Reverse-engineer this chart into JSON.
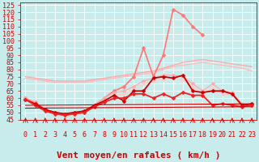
{
  "xlabel": "Vent moyen/en rafales ( km/h )",
  "background_color": "#c8ecec",
  "grid_color": "#b0d0d0",
  "xlim": [
    -0.5,
    23.5
  ],
  "ylim": [
    45,
    127
  ],
  "yticks": [
    45,
    50,
    55,
    60,
    65,
    70,
    75,
    80,
    85,
    90,
    95,
    100,
    105,
    110,
    115,
    120,
    125
  ],
  "xticks": [
    0,
    1,
    2,
    3,
    4,
    5,
    6,
    7,
    8,
    9,
    10,
    11,
    12,
    13,
    14,
    15,
    16,
    17,
    18,
    19,
    20,
    21,
    22,
    23
  ],
  "series": [
    {
      "name": "smooth_top_max",
      "color": "#ffaaaa",
      "alpha": 1.0,
      "linewidth": 1.0,
      "marker": null,
      "x": [
        0,
        1,
        2,
        3,
        4,
        5,
        6,
        7,
        8,
        9,
        10,
        11,
        12,
        13,
        14,
        15,
        16,
        17,
        18,
        19,
        20,
        21,
        22,
        23
      ],
      "y": [
        75,
        74,
        73,
        72,
        72,
        72,
        72,
        73,
        74,
        75,
        76,
        77,
        78,
        79,
        81,
        83,
        85,
        86,
        87,
        86,
        85,
        84,
        83,
        82
      ]
    },
    {
      "name": "smooth_top_mid",
      "color": "#ffbbbb",
      "alpha": 1.0,
      "linewidth": 1.0,
      "marker": null,
      "x": [
        0,
        1,
        2,
        3,
        4,
        5,
        6,
        7,
        8,
        9,
        10,
        11,
        12,
        13,
        14,
        15,
        16,
        17,
        18,
        19,
        20,
        21,
        22,
        23
      ],
      "y": [
        74,
        73,
        72,
        71,
        71,
        71,
        71,
        72,
        73,
        74,
        75,
        76,
        77,
        78,
        80,
        82,
        83,
        84,
        85,
        84,
        83,
        82,
        81,
        79
      ]
    },
    {
      "name": "rafales_cur",
      "color": "#ff7777",
      "alpha": 1.0,
      "linewidth": 1.2,
      "marker": "D",
      "markersize": 2.5,
      "x": [
        0,
        1,
        2,
        3,
        4,
        5,
        6,
        7,
        8,
        9,
        10,
        11,
        12,
        13,
        14,
        15,
        16,
        17,
        18
      ],
      "y": [
        60,
        57,
        52,
        50,
        49,
        50,
        51,
        55,
        60,
        65,
        68,
        75,
        95,
        75,
        90,
        122,
        118,
        110,
        104
      ]
    },
    {
      "name": "vent_rafales_hist",
      "color": "#ffaaaa",
      "alpha": 0.9,
      "linewidth": 1.0,
      "marker": "D",
      "markersize": 2.5,
      "x": [
        0,
        1,
        2,
        3,
        4,
        5,
        6,
        7,
        8,
        9,
        10,
        11,
        12,
        13,
        14,
        15,
        16,
        17,
        18,
        19,
        20,
        21,
        22,
        23
      ],
      "y": [
        60,
        57,
        52,
        50,
        49,
        50,
        51,
        55,
        60,
        64,
        65,
        68,
        72,
        74,
        76,
        76,
        75,
        70,
        65,
        70,
        65,
        64,
        56,
        56
      ]
    },
    {
      "name": "vent_moyen_hist",
      "color": "#ffcccc",
      "alpha": 1.0,
      "linewidth": 1.0,
      "marker": "D",
      "markersize": 2.5,
      "x": [
        0,
        1,
        2,
        3,
        4,
        5,
        6,
        7,
        8,
        9,
        10,
        11,
        12,
        13,
        14,
        15,
        16,
        17,
        18,
        19,
        20,
        21,
        22,
        23
      ],
      "y": [
        59,
        56,
        51,
        49,
        48,
        49,
        50,
        54,
        58,
        62,
        63,
        66,
        70,
        72,
        73,
        74,
        73,
        68,
        63,
        67,
        63,
        62,
        55,
        55
      ]
    },
    {
      "name": "vent_cur_rafales",
      "color": "#cc0000",
      "alpha": 1.0,
      "linewidth": 1.3,
      "marker": "D",
      "markersize": 2.5,
      "x": [
        0,
        1,
        2,
        3,
        4,
        5,
        6,
        7,
        8,
        9,
        10,
        11,
        12,
        13,
        14,
        15,
        16,
        17,
        18,
        19,
        20,
        21,
        22,
        23
      ],
      "y": [
        59,
        56,
        52,
        50,
        49,
        50,
        51,
        55,
        58,
        62,
        58,
        65,
        65,
        74,
        75,
        74,
        76,
        65,
        64,
        65,
        65,
        63,
        55,
        56
      ]
    },
    {
      "name": "vent_cur_moyen",
      "color": "#ee2222",
      "alpha": 1.0,
      "linewidth": 1.3,
      "marker": "D",
      "markersize": 2.5,
      "x": [
        0,
        1,
        2,
        3,
        4,
        5,
        6,
        7,
        8,
        9,
        10,
        11,
        12,
        13,
        14,
        15,
        16,
        17,
        18,
        19,
        20,
        21,
        22,
        23
      ],
      "y": [
        59,
        55,
        51,
        49,
        48,
        49,
        50,
        54,
        57,
        60,
        60,
        63,
        63,
        60,
        63,
        60,
        64,
        62,
        62,
        55,
        56,
        55,
        54,
        55
      ]
    },
    {
      "name": "flat_bottom1",
      "color": "#cc0000",
      "alpha": 1.0,
      "linewidth": 0.8,
      "marker": null,
      "x": [
        0,
        23
      ],
      "y": [
        55,
        56
      ]
    },
    {
      "name": "flat_bottom2",
      "color": "#cc0000",
      "alpha": 1.0,
      "linewidth": 0.8,
      "marker": null,
      "x": [
        0,
        23
      ],
      "y": [
        53,
        54
      ]
    }
  ],
  "arrow_color": "#cc0000",
  "xlabel_color": "#cc0000",
  "xlabel_fontsize": 8,
  "tick_color": "#cc0000",
  "tick_fontsize": 6
}
